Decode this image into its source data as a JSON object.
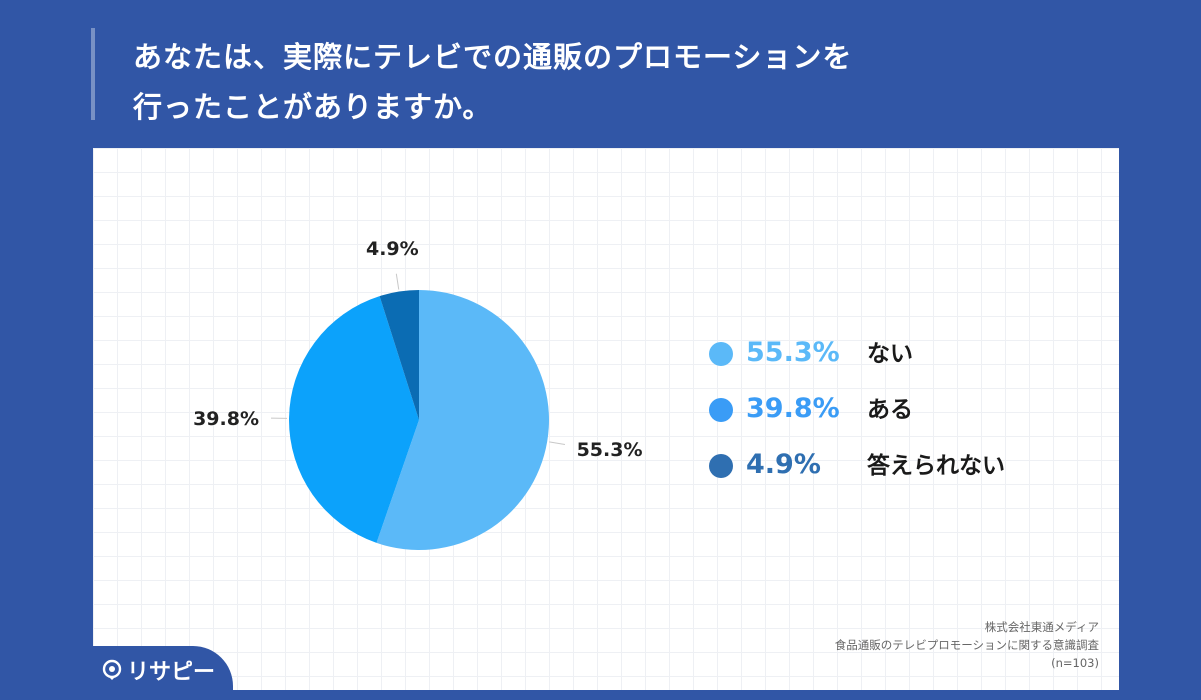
{
  "title_lines": [
    "あなたは、実際にテレビでの通販のプロモーションを",
    "行ったことがありますか。"
  ],
  "chart_data": {
    "type": "pie",
    "title": "",
    "start_angle_deg": 0,
    "direction": "clockwise",
    "slices": [
      {
        "label": "ない",
        "value": 55.3,
        "display": "55.3%",
        "color": "#5bb9f8"
      },
      {
        "label": "ある",
        "value": 39.8,
        "display": "39.8%",
        "color": "#0ca2fb"
      },
      {
        "label": "答えられない",
        "value": 4.9,
        "display": "4.9%",
        "color": "#0b6cb3"
      }
    ],
    "legend_placement": "right",
    "grid": false
  },
  "legend": [
    {
      "pct": "55.3%",
      "name": "ない",
      "dot_color": "#5bb9f8",
      "pct_color": "#5bb9f8"
    },
    {
      "pct": "39.8%",
      "name": "ある",
      "dot_color": "#3a9cf6",
      "pct_color": "#3a9cf6"
    },
    {
      "pct": "4.9%",
      "name": "答えられない",
      "dot_color": "#2f6fb1",
      "pct_color": "#2f6fb1"
    }
  ],
  "source": {
    "company": "株式会社東通メディア",
    "survey": "食品通販のテレビプロモーションに関する意識調査",
    "sample": "(n=103)"
  },
  "logo": {
    "text": "リサピー",
    "icon": "pin-icon"
  },
  "colors": {
    "background": "#3156a6",
    "card": "#ffffff"
  }
}
